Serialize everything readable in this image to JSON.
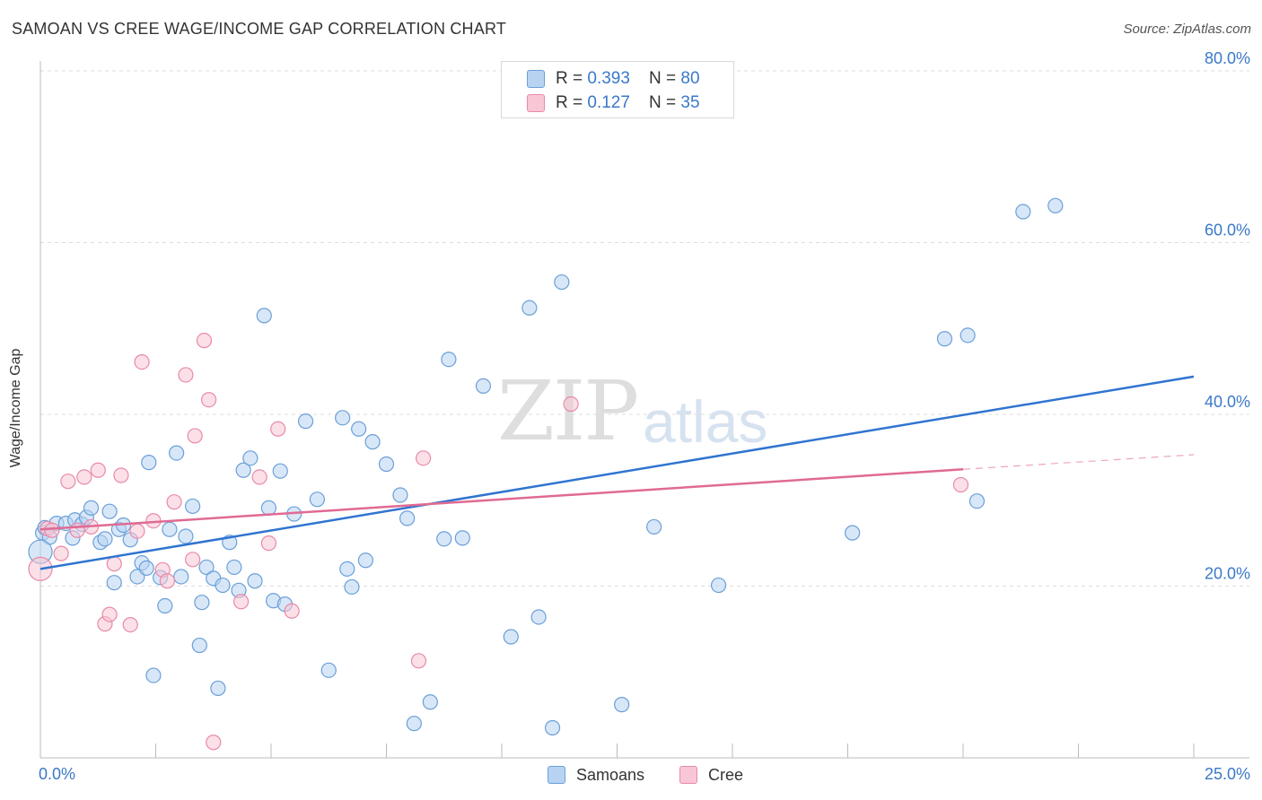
{
  "header": {
    "title": "SAMOAN VS CREE WAGE/INCOME GAP CORRELATION CHART",
    "source": "Source: ZipAtlas.com"
  },
  "watermark": {
    "zip": "ZIP",
    "atlas": "atlas"
  },
  "legend": {
    "samoans": {
      "r_label": "R = ",
      "r_value": "0.393",
      "n_label": "N = ",
      "n_value": "80"
    },
    "cree": {
      "r_label": "R = ",
      "r_value": "0.127",
      "n_label": "N = ",
      "n_value": "35"
    }
  },
  "bottom_legend": {
    "samoans": "Samoans",
    "cree": "Cree"
  },
  "colors": {
    "samoans_fill": "#b8d3f2",
    "samoans_stroke": "#6a9fd8",
    "samoans_line": "#2f74d0",
    "cree_fill": "#f9c6d6",
    "cree_stroke": "#e88aa8",
    "cree_line": "#e06a93",
    "tick_label": "#3a78c9",
    "grid": "#dddddd"
  },
  "chart_data": {
    "type": "scatter",
    "title": "SAMOAN VS CREE WAGE/INCOME GAP CORRELATION CHART",
    "xlabel": "",
    "ylabel": "Wage/Income Gap",
    "xlim": [
      0,
      25
    ],
    "ylim": [
      0,
      80
    ],
    "x_tick_labels": [
      "0.0%",
      "25.0%"
    ],
    "y_ticks": [
      20,
      40,
      60,
      80
    ],
    "y_tick_labels": [
      "20.0%",
      "40.0%",
      "60.0%",
      "80.0%"
    ],
    "grid": true,
    "legend_position": "top-center",
    "series": [
      {
        "name": "Samoans",
        "points": [
          [
            0.05,
            26.2
          ],
          [
            0.1,
            26.8
          ],
          [
            0.2,
            25.7
          ],
          [
            0.35,
            27.3
          ],
          [
            0.55,
            27.3
          ],
          [
            0.7,
            25.6
          ],
          [
            0.75,
            27.7
          ],
          [
            0.9,
            27.2
          ],
          [
            1.0,
            28.0
          ],
          [
            1.1,
            29.1
          ],
          [
            1.3,
            25.1
          ],
          [
            1.4,
            25.5
          ],
          [
            1.5,
            28.7
          ],
          [
            1.6,
            20.4
          ],
          [
            1.7,
            26.6
          ],
          [
            1.8,
            27.1
          ],
          [
            1.95,
            25.4
          ],
          [
            2.1,
            21.1
          ],
          [
            2.2,
            22.7
          ],
          [
            2.3,
            22.1
          ],
          [
            2.35,
            34.4
          ],
          [
            2.45,
            9.6
          ],
          [
            2.6,
            21.0
          ],
          [
            2.7,
            17.7
          ],
          [
            2.8,
            26.6
          ],
          [
            2.95,
            35.5
          ],
          [
            3.05,
            21.1
          ],
          [
            3.15,
            25.8
          ],
          [
            3.3,
            29.3
          ],
          [
            3.45,
            13.1
          ],
          [
            3.5,
            18.1
          ],
          [
            3.6,
            22.2
          ],
          [
            3.75,
            20.9
          ],
          [
            3.85,
            8.1
          ],
          [
            3.95,
            20.1
          ],
          [
            4.1,
            25.1
          ],
          [
            4.2,
            22.2
          ],
          [
            4.3,
            19.5
          ],
          [
            4.4,
            33.5
          ],
          [
            4.55,
            34.9
          ],
          [
            4.65,
            20.6
          ],
          [
            4.85,
            51.5
          ],
          [
            4.95,
            29.1
          ],
          [
            5.05,
            18.3
          ],
          [
            5.2,
            33.4
          ],
          [
            5.3,
            17.9
          ],
          [
            5.5,
            28.4
          ],
          [
            5.75,
            39.2
          ],
          [
            6.0,
            30.1
          ],
          [
            6.25,
            10.2
          ],
          [
            6.55,
            39.6
          ],
          [
            6.65,
            22.0
          ],
          [
            6.75,
            19.9
          ],
          [
            6.9,
            38.3
          ],
          [
            7.05,
            23.0
          ],
          [
            7.2,
            36.8
          ],
          [
            7.5,
            34.2
          ],
          [
            7.8,
            30.6
          ],
          [
            7.95,
            27.9
          ],
          [
            8.1,
            4.0
          ],
          [
            8.45,
            6.5
          ],
          [
            8.75,
            25.5
          ],
          [
            8.85,
            46.4
          ],
          [
            9.15,
            25.6
          ],
          [
            9.6,
            43.3
          ],
          [
            10.2,
            14.1
          ],
          [
            10.6,
            52.4
          ],
          [
            10.8,
            16.4
          ],
          [
            11.1,
            3.5
          ],
          [
            11.3,
            55.4
          ],
          [
            12.6,
            6.2
          ],
          [
            13.3,
            26.9
          ],
          [
            14.7,
            20.1
          ],
          [
            17.6,
            26.2
          ],
          [
            19.6,
            48.8
          ],
          [
            20.1,
            49.2
          ],
          [
            20.3,
            29.9
          ],
          [
            21.3,
            63.6
          ],
          [
            22.0,
            64.3
          ],
          [
            0.0,
            24.0
          ]
        ],
        "trendline": [
          [
            0.0,
            22.0
          ],
          [
            25.0,
            44.4
          ]
        ]
      },
      {
        "name": "Cree",
        "points": [
          [
            0.0,
            22.0
          ],
          [
            0.15,
            26.7
          ],
          [
            0.45,
            23.8
          ],
          [
            0.6,
            32.2
          ],
          [
            0.8,
            26.5
          ],
          [
            0.95,
            32.7
          ],
          [
            1.1,
            26.9
          ],
          [
            1.25,
            33.5
          ],
          [
            1.4,
            15.6
          ],
          [
            1.5,
            16.7
          ],
          [
            1.6,
            22.6
          ],
          [
            1.75,
            32.9
          ],
          [
            1.95,
            15.5
          ],
          [
            2.1,
            26.4
          ],
          [
            2.2,
            46.1
          ],
          [
            2.45,
            27.6
          ],
          [
            2.65,
            21.9
          ],
          [
            2.75,
            20.6
          ],
          [
            2.9,
            29.8
          ],
          [
            3.15,
            44.6
          ],
          [
            3.3,
            23.1
          ],
          [
            3.35,
            37.5
          ],
          [
            3.55,
            48.6
          ],
          [
            3.65,
            41.7
          ],
          [
            3.75,
            1.8
          ],
          [
            4.35,
            18.2
          ],
          [
            4.75,
            32.7
          ],
          [
            4.95,
            25.0
          ],
          [
            5.15,
            38.3
          ],
          [
            5.45,
            17.1
          ],
          [
            8.2,
            11.3
          ],
          [
            8.3,
            34.9
          ],
          [
            11.5,
            41.2
          ],
          [
            19.95,
            31.8
          ],
          [
            0.25,
            26.5
          ]
        ],
        "trendline": [
          [
            0.0,
            26.6
          ],
          [
            20.0,
            33.6
          ]
        ],
        "trendline_extension": [
          [
            20.0,
            33.6
          ],
          [
            25.0,
            35.3
          ]
        ]
      }
    ]
  }
}
